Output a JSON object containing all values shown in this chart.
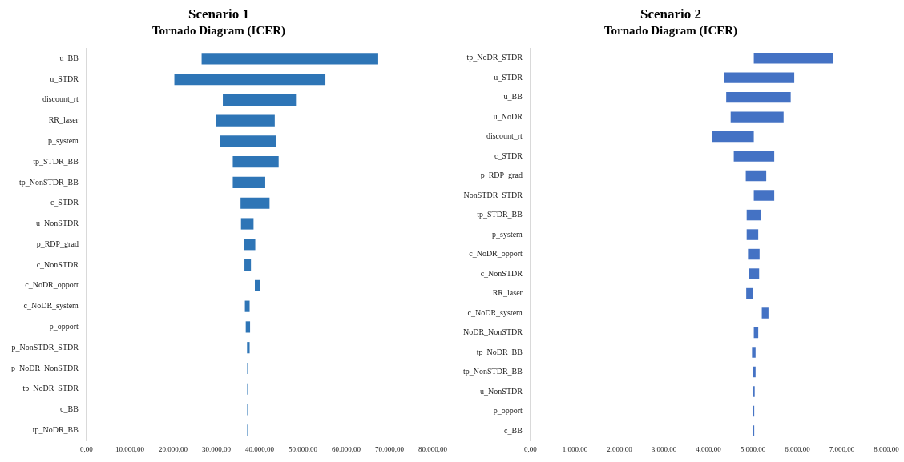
{
  "chart_data": [
    {
      "type": "bar",
      "title": "Scenario 1",
      "subtitle": "Tornado Diagram (ICER)",
      "orientation": "horizontal",
      "color": "#2e75b6",
      "categories": [
        "u_BB",
        "u_STDR",
        "discount_rt",
        "RR_laser",
        "p_system",
        "tp_STDR_BB",
        "tp_NonSTDR_BB",
        "c_STDR",
        "u_NonSTDR",
        "p_RDP_grad",
        "c_NonSTDR",
        "c_NoDR_opport",
        "c_NoDR_system",
        "p_opport",
        "p_NonSTDR_STDR",
        "p_NoDR_NonSTDR",
        "tp_NoDR_STDR",
        "c_BB",
        "tp_NoDR_BB"
      ],
      "base": [
        26600,
        20300,
        31500,
        30000,
        30800,
        33800,
        33800,
        35600,
        35700,
        36400,
        36500,
        38900,
        36600,
        36800,
        37100,
        37100,
        37100,
        37100,
        37100
      ],
      "values": [
        40800,
        34900,
        16900,
        13500,
        13000,
        10600,
        7500,
        6700,
        2900,
        2600,
        1500,
        1300,
        1100,
        1000,
        600,
        100,
        100,
        100,
        100
      ],
      "xlim": [
        0,
        80000
      ],
      "xticks": [
        {
          "value": 0,
          "label": "0,00"
        },
        {
          "value": 10000,
          "label": "10.000,00"
        },
        {
          "value": 20000,
          "label": "20.000,00"
        },
        {
          "value": 30000,
          "label": "30.000,00"
        },
        {
          "value": 40000,
          "label": "40.000,00"
        },
        {
          "value": 50000,
          "label": "50.000,00"
        },
        {
          "value": 60000,
          "label": "60.000,00"
        },
        {
          "value": 70000,
          "label": "70.000,00"
        },
        {
          "value": 80000,
          "label": "80.000,00"
        }
      ]
    },
    {
      "type": "bar",
      "title": "Scenario 2",
      "subtitle": "Tornado Diagram (ICER)",
      "orientation": "horizontal",
      "color": "#4472c4",
      "categories": [
        "tp_NoDR_STDR",
        "u_STDR",
        "u_BB",
        "u_NoDR",
        "discount_rt",
        "c_STDR",
        "p_RDP_grad",
        "NonSTDR_STDR",
        "tp_STDR_BB",
        "p_system",
        "c_NoDR_opport",
        "c_NonSTDR",
        "RR_laser",
        "c_NoDR_system",
        "NoDR_NonSTDR",
        "tp_NoDR_BB",
        "tp_NonSTDR_BB",
        "u_NonSTDR",
        "p_opport",
        "c_BB"
      ],
      "base": [
        5020,
        4360,
        4400,
        4500,
        4090,
        4570,
        4840,
        5020,
        4860,
        4860,
        4890,
        4910,
        4850,
        5200,
        5020,
        4980,
        5000,
        5010,
        5010,
        5010
      ],
      "values": [
        1790,
        1570,
        1450,
        1190,
        930,
        910,
        460,
        460,
        330,
        260,
        260,
        230,
        160,
        150,
        100,
        80,
        60,
        30,
        20,
        20
      ],
      "xlim": [
        0,
        8000
      ],
      "xticks": [
        {
          "value": 0,
          "label": "0,00"
        },
        {
          "value": 1000,
          "label": "1.000,00"
        },
        {
          "value": 2000,
          "label": "2.000,00"
        },
        {
          "value": 3000,
          "label": "3.000,00"
        },
        {
          "value": 4000,
          "label": "4.000,00"
        },
        {
          "value": 5000,
          "label": "5.000,00"
        },
        {
          "value": 6000,
          "label": "6.000,00"
        },
        {
          "value": 7000,
          "label": "7.000,00"
        },
        {
          "value": 8000,
          "label": "8.000,00"
        }
      ]
    }
  ]
}
